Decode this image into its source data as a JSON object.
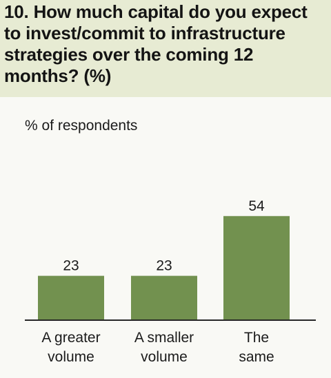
{
  "title": "10. How much capital do you expect to invest/commit to infrastructure strategies over the coming 12 months? (%)",
  "colors": {
    "bar": "#72914f",
    "axis": "#262626",
    "panel": "#f9f9f5",
    "background": "#e7ebd3",
    "text": "#1b1b1b"
  },
  "chart_data": {
    "type": "bar",
    "title": "10. How much capital do you expect to invest/commit to infrastructure strategies over the coming 12 months? (%)",
    "ylabel": "% of respondents",
    "xlabel": "",
    "categories": [
      [
        "A greater",
        "volume"
      ],
      [
        "A smaller",
        "volume"
      ],
      [
        "The",
        "same"
      ]
    ],
    "values": [
      23,
      23,
      54
    ],
    "data_labels": [
      "23",
      "23",
      "54"
    ],
    "ylim": [
      0,
      60
    ],
    "grid": false,
    "legend": "none"
  }
}
